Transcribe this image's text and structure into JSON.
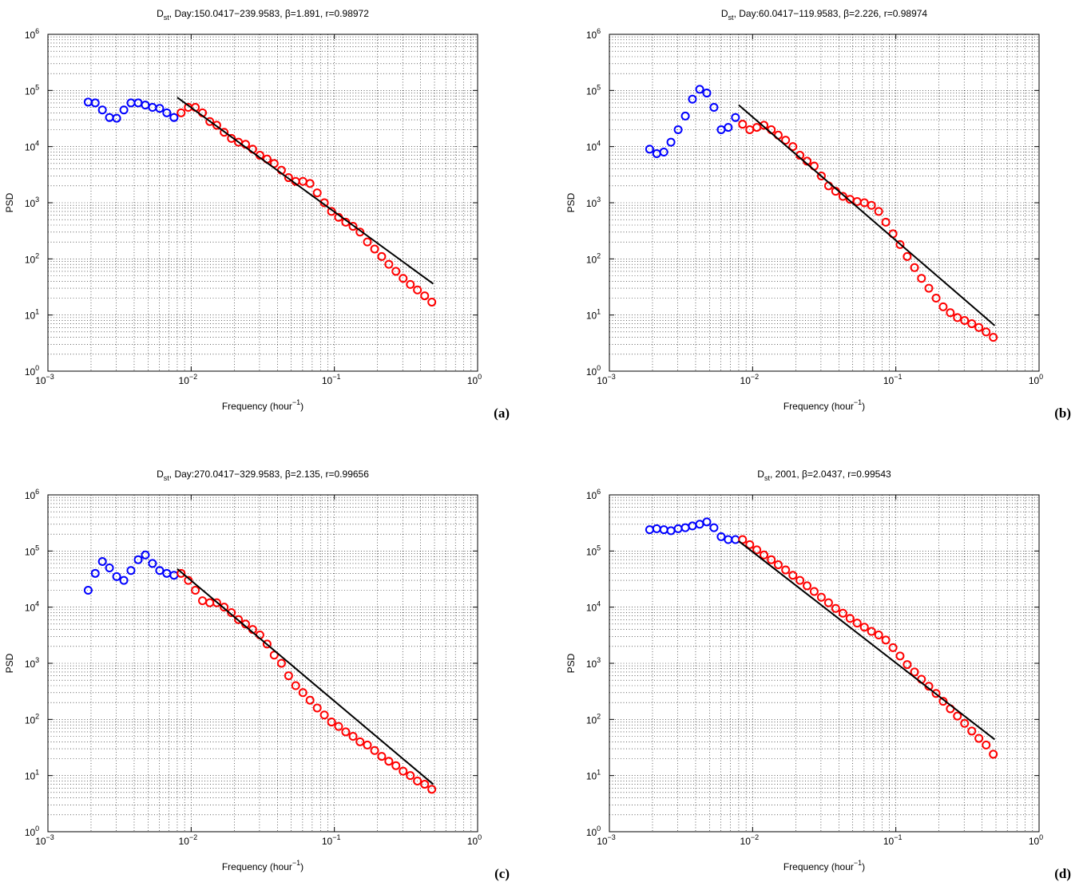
{
  "chart_data": [
    {
      "type": "scatter",
      "title_parts": [
        "D",
        "st",
        ", Day:150.0417−239.9583, β=1.891, r=0.98972"
      ],
      "xlabel_parts": [
        "Frequency (hour",
        "−1",
        ")"
      ],
      "ylabel": "PSD",
      "panel_label": "(a)",
      "log_x": true,
      "log_y": true,
      "grid": true,
      "xlim": [
        0.001,
        1
      ],
      "ylim": [
        1,
        1000000
      ],
      "xticks": [
        {
          "value": 0.001,
          "label": "10",
          "exponent": "−3"
        },
        {
          "value": 0.01,
          "label": "10",
          "exponent": "−2"
        },
        {
          "value": 0.1,
          "label": "10",
          "exponent": "−1"
        },
        {
          "value": 1,
          "label": "10",
          "exponent": "0"
        }
      ],
      "yticks": [
        {
          "value": 1,
          "label": "10",
          "exponent": "0"
        },
        {
          "value": 10,
          "label": "10",
          "exponent": "1"
        },
        {
          "value": 100,
          "label": "10",
          "exponent": "2"
        },
        {
          "value": 1000,
          "label": "10",
          "exponent": "3"
        },
        {
          "value": 10000,
          "label": "10",
          "exponent": "4"
        },
        {
          "value": 100000,
          "label": "10",
          "exponent": "5"
        },
        {
          "value": 1000000,
          "label": "10",
          "exponent": "6"
        }
      ],
      "series": [
        {
          "color": "#0000ff",
          "marker": "circle",
          "x": [
            0.00191,
            0.00214,
            0.0024,
            0.00269,
            0.00302,
            0.00339,
            0.0038,
            0.00427,
            0.00479,
            0.00537,
            0.00603,
            0.00676,
            0.00759
          ],
          "values": [
            62000,
            60000,
            45000,
            33000,
            32000,
            45000,
            60000,
            60000,
            55000,
            50000,
            48000,
            40000,
            33000
          ]
        },
        {
          "color": "#ff0000",
          "marker": "circle",
          "x": [
            0.00851,
            0.00955,
            0.0107,
            0.012,
            0.0135,
            0.0151,
            0.017,
            0.0191,
            0.0214,
            0.024,
            0.0269,
            0.0302,
            0.0339,
            0.038,
            0.0427,
            0.0479,
            0.0537,
            0.0603,
            0.0676,
            0.0759,
            0.0851,
            0.0955,
            0.107,
            0.12,
            0.135,
            0.151,
            0.17,
            0.191,
            0.214,
            0.24,
            0.269,
            0.302,
            0.339,
            0.38,
            0.427,
            0.479
          ],
          "values": [
            40000,
            50000,
            50000,
            40000,
            28000,
            24000,
            18000,
            14000,
            12000,
            11000,
            9000,
            7000,
            6000,
            5000,
            3800,
            2800,
            2400,
            2400,
            2200,
            1500,
            1000,
            700,
            550,
            450,
            380,
            300,
            200,
            150,
            110,
            80,
            60,
            45,
            35,
            28,
            22,
            17
          ]
        },
        {
          "color": "#000000",
          "marker": "line",
          "x": [
            0.008,
            0.49
          ],
          "values": [
            75000,
            36
          ]
        }
      ]
    },
    {
      "type": "scatter",
      "title_parts": [
        "D",
        "st",
        ", Day:60.0417−119.9583, β=2.226, r=0.98974"
      ],
      "xlabel_parts": [
        "Frequency (hour",
        "−1",
        ")"
      ],
      "ylabel": "PSD",
      "panel_label": "(b)",
      "log_x": true,
      "log_y": true,
      "grid": true,
      "xlim": [
        0.001,
        1
      ],
      "ylim": [
        1,
        1000000
      ],
      "xticks": [
        {
          "value": 0.001,
          "label": "10",
          "exponent": "−3"
        },
        {
          "value": 0.01,
          "label": "10",
          "exponent": "−2"
        },
        {
          "value": 0.1,
          "label": "10",
          "exponent": "−1"
        },
        {
          "value": 1,
          "label": "10",
          "exponent": "0"
        }
      ],
      "yticks": [
        {
          "value": 1,
          "label": "10",
          "exponent": "0"
        },
        {
          "value": 10,
          "label": "10",
          "exponent": "1"
        },
        {
          "value": 100,
          "label": "10",
          "exponent": "2"
        },
        {
          "value": 1000,
          "label": "10",
          "exponent": "3"
        },
        {
          "value": 10000,
          "label": "10",
          "exponent": "4"
        },
        {
          "value": 100000,
          "label": "10",
          "exponent": "5"
        },
        {
          "value": 1000000,
          "label": "10",
          "exponent": "6"
        }
      ],
      "series": [
        {
          "color": "#0000ff",
          "marker": "circle",
          "x": [
            0.00191,
            0.00214,
            0.0024,
            0.00269,
            0.00302,
            0.00339,
            0.0038,
            0.00427,
            0.00479,
            0.00537,
            0.00603,
            0.00676,
            0.00759
          ],
          "values": [
            9000,
            7500,
            8000,
            12000,
            20000,
            35000,
            70000,
            105000,
            90000,
            50000,
            20000,
            22000,
            33000
          ]
        },
        {
          "color": "#ff0000",
          "marker": "circle",
          "x": [
            0.00851,
            0.00955,
            0.0107,
            0.012,
            0.0135,
            0.0151,
            0.017,
            0.0191,
            0.0214,
            0.024,
            0.0269,
            0.0302,
            0.0339,
            0.038,
            0.0427,
            0.0479,
            0.0537,
            0.0603,
            0.0676,
            0.0759,
            0.0851,
            0.0955,
            0.107,
            0.12,
            0.135,
            0.151,
            0.17,
            0.191,
            0.214,
            0.24,
            0.269,
            0.302,
            0.339,
            0.38,
            0.427,
            0.479
          ],
          "values": [
            25000,
            20000,
            22000,
            24000,
            20000,
            16000,
            13000,
            10000,
            7000,
            5500,
            4500,
            3000,
            2000,
            1600,
            1300,
            1150,
            1050,
            1000,
            900,
            700,
            450,
            280,
            180,
            110,
            70,
            45,
            30,
            20,
            14,
            11,
            9,
            8,
            7,
            6,
            5,
            4
          ]
        },
        {
          "color": "#000000",
          "marker": "line",
          "x": [
            0.008,
            0.49
          ],
          "values": [
            55000,
            6.5
          ]
        }
      ]
    },
    {
      "type": "scatter",
      "title_parts": [
        "D",
        "st",
        ", Day:270.0417−329.9583, β=2.135, r=0.99656"
      ],
      "xlabel_parts": [
        "Frequency (hour",
        "−1",
        ")"
      ],
      "ylabel": "PSD",
      "panel_label": "(c)",
      "log_x": true,
      "log_y": true,
      "grid": true,
      "xlim": [
        0.001,
        1
      ],
      "ylim": [
        1,
        1000000
      ],
      "xticks": [
        {
          "value": 0.001,
          "label": "10",
          "exponent": "−3"
        },
        {
          "value": 0.01,
          "label": "10",
          "exponent": "−2"
        },
        {
          "value": 0.1,
          "label": "10",
          "exponent": "−1"
        },
        {
          "value": 1,
          "label": "10",
          "exponent": "0"
        }
      ],
      "yticks": [
        {
          "value": 1,
          "label": "10",
          "exponent": "0"
        },
        {
          "value": 10,
          "label": "10",
          "exponent": "1"
        },
        {
          "value": 100,
          "label": "10",
          "exponent": "2"
        },
        {
          "value": 1000,
          "label": "10",
          "exponent": "3"
        },
        {
          "value": 10000,
          "label": "10",
          "exponent": "4"
        },
        {
          "value": 100000,
          "label": "10",
          "exponent": "5"
        },
        {
          "value": 1000000,
          "label": "10",
          "exponent": "6"
        }
      ],
      "series": [
        {
          "color": "#0000ff",
          "marker": "circle",
          "x": [
            0.00191,
            0.00214,
            0.0024,
            0.00269,
            0.00302,
            0.00339,
            0.0038,
            0.00427,
            0.00479,
            0.00537,
            0.00603,
            0.00676,
            0.00759
          ],
          "values": [
            20000,
            40000,
            65000,
            50000,
            35000,
            30000,
            45000,
            70000,
            85000,
            60000,
            45000,
            40000,
            37000
          ]
        },
        {
          "color": "#ff0000",
          "marker": "circle",
          "x": [
            0.00851,
            0.00955,
            0.0107,
            0.012,
            0.0135,
            0.0151,
            0.017,
            0.0191,
            0.0214,
            0.024,
            0.0269,
            0.0302,
            0.0339,
            0.038,
            0.0427,
            0.0479,
            0.0537,
            0.0603,
            0.0676,
            0.0759,
            0.0851,
            0.0955,
            0.107,
            0.12,
            0.135,
            0.151,
            0.17,
            0.191,
            0.214,
            0.24,
            0.269,
            0.302,
            0.339,
            0.38,
            0.427,
            0.479
          ],
          "values": [
            40000,
            30000,
            20000,
            13000,
            12000,
            12000,
            10000,
            8000,
            6000,
            5000,
            4000,
            3200,
            2200,
            1400,
            1000,
            600,
            400,
            300,
            220,
            160,
            120,
            90,
            75,
            60,
            50,
            40,
            35,
            28,
            22,
            18,
            15,
            12,
            10,
            8,
            7,
            5.7
          ]
        },
        {
          "color": "#000000",
          "marker": "line",
          "x": [
            0.008,
            0.49
          ],
          "values": [
            48000,
            7
          ]
        }
      ]
    },
    {
      "type": "scatter",
      "title_parts": [
        "D",
        "st",
        ", 2001, β=2.0437, r=0.99543"
      ],
      "xlabel_parts": [
        "Frequency (hour",
        "−1",
        ")"
      ],
      "ylabel": "PSD",
      "panel_label": "(d)",
      "log_x": true,
      "log_y": true,
      "grid": true,
      "xlim": [
        0.001,
        1
      ],
      "ylim": [
        1,
        1000000
      ],
      "xticks": [
        {
          "value": 0.001,
          "label": "10",
          "exponent": "−3"
        },
        {
          "value": 0.01,
          "label": "10",
          "exponent": "−2"
        },
        {
          "value": 0.1,
          "label": "10",
          "exponent": "−1"
        },
        {
          "value": 1,
          "label": "10",
          "exponent": "0"
        }
      ],
      "yticks": [
        {
          "value": 1,
          "label": "10",
          "exponent": "0"
        },
        {
          "value": 10,
          "label": "10",
          "exponent": "1"
        },
        {
          "value": 100,
          "label": "10",
          "exponent": "2"
        },
        {
          "value": 1000,
          "label": "10",
          "exponent": "3"
        },
        {
          "value": 10000,
          "label": "10",
          "exponent": "4"
        },
        {
          "value": 100000,
          "label": "10",
          "exponent": "5"
        },
        {
          "value": 1000000,
          "label": "10",
          "exponent": "6"
        }
      ],
      "series": [
        {
          "color": "#0000ff",
          "marker": "circle",
          "x": [
            0.00191,
            0.00214,
            0.0024,
            0.00269,
            0.00302,
            0.00339,
            0.0038,
            0.00427,
            0.00479,
            0.00537,
            0.00603,
            0.00676,
            0.00759
          ],
          "values": [
            240000,
            250000,
            240000,
            230000,
            250000,
            260000,
            280000,
            300000,
            330000,
            260000,
            180000,
            160000,
            160000
          ]
        },
        {
          "color": "#ff0000",
          "marker": "circle",
          "x": [
            0.00851,
            0.00955,
            0.0107,
            0.012,
            0.0135,
            0.0151,
            0.017,
            0.0191,
            0.0214,
            0.024,
            0.0269,
            0.0302,
            0.0339,
            0.038,
            0.0427,
            0.0479,
            0.0537,
            0.0603,
            0.0676,
            0.0759,
            0.0851,
            0.0955,
            0.107,
            0.12,
            0.135,
            0.151,
            0.17,
            0.191,
            0.214,
            0.24,
            0.269,
            0.302,
            0.339,
            0.38,
            0.427,
            0.479
          ],
          "values": [
            160000,
            130000,
            105000,
            85000,
            70000,
            57000,
            46000,
            37000,
            30000,
            24000,
            19000,
            15000,
            12000,
            9500,
            7800,
            6300,
            5200,
            4400,
            3700,
            3200,
            2600,
            1900,
            1350,
            950,
            700,
            520,
            390,
            290,
            210,
            155,
            115,
            85,
            62,
            46,
            35,
            24
          ]
        },
        {
          "color": "#000000",
          "marker": "line",
          "x": [
            0.008,
            0.49
          ],
          "values": [
            150000,
            44
          ]
        }
      ]
    }
  ]
}
